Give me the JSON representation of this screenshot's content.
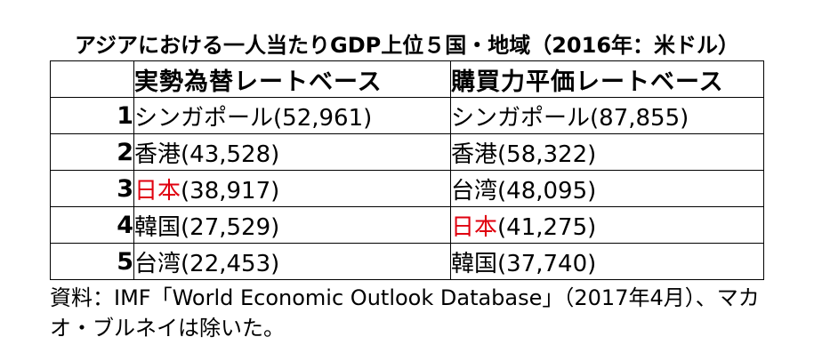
{
  "title": "アジアにおける一人当たりGDP上位５国・地域（2016年：米ドル）",
  "table": {
    "headers": [
      "",
      "実勢為替レートベース",
      "購買力平価レートベース"
    ],
    "rows": [
      {
        "rank": "1",
        "market": {
          "name": "シンガポール",
          "value": "(52,961)"
        },
        "ppp": {
          "name": "シンガポール",
          "value": "(87,855)"
        }
      },
      {
        "rank": "2",
        "market": {
          "name": "香港",
          "value": "(43,528)"
        },
        "ppp": {
          "name": "香港",
          "value": "(58,322)"
        }
      },
      {
        "rank": "3",
        "market": {
          "name": "日本",
          "value": "(38,917)"
        },
        "ppp": {
          "name": "台湾",
          "value": "(48,095)"
        }
      },
      {
        "rank": "4",
        "market": {
          "name": "韓国",
          "value": "(27,529)"
        },
        "ppp": {
          "name": "日本",
          "value": "(41,275)"
        }
      },
      {
        "rank": "5",
        "market": {
          "name": "台湾",
          "value": "(22,453)"
        },
        "ppp": {
          "name": "韓国",
          "value": "(37,740)"
        }
      }
    ]
  },
  "note": "資料：IMF「World Economic Outlook Database」（2017年4月）、マカオ・ブルネイは除いた。",
  "colors": {
    "highlight": "#e0000f",
    "text": "#000000",
    "background": "#ffffff"
  }
}
